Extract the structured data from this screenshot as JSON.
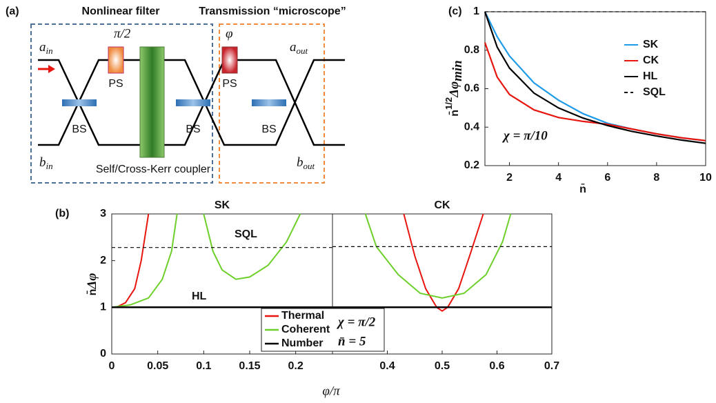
{
  "diagram": {
    "label": "(a)",
    "left_box_title": "Nonlinear filter",
    "right_box_title": "Transmission “microscope”",
    "phase1": "π/2",
    "phase2": "φ",
    "ports": [
      {
        "symbol": "a",
        "sub": "in"
      },
      {
        "symbol": "a",
        "sub": "out"
      },
      {
        "symbol": "b",
        "sub": "in"
      },
      {
        "symbol": "b",
        "sub": "out"
      }
    ],
    "ps_labels": [
      "PS",
      "PS"
    ],
    "bs_labels": [
      "BS",
      "BS",
      "BS"
    ],
    "coupler": "Self/Cross-Kerr coupler"
  },
  "chart_data": [
    {
      "type": "line",
      "panel_label": "(c)",
      "ylabel": {
        "base": "n̄",
        "sup": "1/2",
        "main": "Δφ",
        "sub": "min"
      },
      "xlabel": "n̄",
      "annotation": "χ = π/10",
      "xlim": [
        1,
        10
      ],
      "xticks": [
        2,
        4,
        6,
        8,
        10
      ],
      "ylim": [
        0.2,
        1
      ],
      "yticks": [
        0.2,
        0.4,
        0.6,
        0.8,
        1
      ],
      "x": [
        1,
        1.5,
        2,
        3,
        4,
        5,
        6,
        7,
        8,
        9,
        10
      ],
      "series": [
        {
          "name": "SK",
          "color": "#1e9be8",
          "values": [
            1,
            0.87,
            0.77,
            0.63,
            0.54,
            0.47,
            0.42,
            0.39,
            0.365,
            0.345,
            0.33
          ]
        },
        {
          "name": "CK",
          "color": "#e8140e",
          "values": [
            0.84,
            0.66,
            0.57,
            0.49,
            0.45,
            0.43,
            0.415,
            0.39,
            0.365,
            0.345,
            0.33
          ]
        },
        {
          "name": "HL",
          "color": "#000000",
          "values": [
            1,
            0.816,
            0.707,
            0.577,
            0.5,
            0.447,
            0.408,
            0.378,
            0.354,
            0.333,
            0.316
          ]
        },
        {
          "name": "SQL",
          "color": "#000000",
          "dash": true,
          "values": [
            1,
            1,
            1,
            1,
            1,
            1,
            1,
            1,
            1,
            1,
            1
          ]
        }
      ]
    },
    {
      "type": "line",
      "panel_label": "(b)",
      "title": "SK",
      "ylabel": {
        "base": "n̄",
        "main": "Δφ"
      },
      "xlabel": "φ/π",
      "annotations": [
        "SQL",
        "HL",
        "χ = π/2",
        "n̄ = 5"
      ],
      "xlim": [
        0,
        0.24
      ],
      "xticks": [
        0,
        0.05,
        0.1,
        0.15,
        0.2
      ],
      "ylim": [
        0,
        3
      ],
      "yticks": [
        0,
        1,
        2,
        3
      ],
      "series": [
        {
          "name": "Thermal",
          "color": "#e8140e",
          "x": [
            0.005,
            0.015,
            0.025,
            0.032,
            0.04
          ],
          "values": [
            1,
            1.1,
            1.4,
            2,
            3
          ]
        },
        {
          "name": "Coherent",
          "color": "#6dcf2a",
          "x": [
            0,
            0.02,
            0.04,
            0.055,
            0.065,
            0.071,
            null,
            0.1,
            0.11,
            0.12,
            0.135,
            0.15,
            0.17,
            0.19,
            0.205
          ],
          "values": [
            1,
            1.05,
            1.2,
            1.6,
            2.2,
            3,
            null,
            3,
            2.2,
            1.8,
            1.6,
            1.65,
            1.9,
            2.4,
            3
          ]
        },
        {
          "name": "Number",
          "color": "#000000",
          "x": [
            0,
            0.24
          ],
          "values": [
            1,
            1
          ]
        },
        {
          "color": "#000000",
          "dash": true,
          "x": [
            0,
            0.24
          ],
          "values": [
            2.28,
            2.28
          ]
        }
      ]
    },
    {
      "type": "line",
      "title": "CK",
      "xlim": [
        0.3,
        0.7
      ],
      "xticks": [
        0.4,
        0.5,
        0.6,
        0.7
      ],
      "ylim": [
        0,
        3
      ],
      "series": [
        {
          "color": "#e8140e",
          "x": [
            0.43,
            0.45,
            0.47,
            0.49,
            0.5,
            0.51,
            0.53,
            0.55,
            0.575
          ],
          "values": [
            3,
            2.1,
            1.4,
            1,
            0.92,
            1,
            1.4,
            2.1,
            3
          ]
        },
        {
          "color": "#6dcf2a",
          "x": [
            0.36,
            0.38,
            0.42,
            0.46,
            0.5,
            0.54,
            0.58,
            0.61,
            0.625
          ],
          "values": [
            3,
            2.3,
            1.7,
            1.3,
            1.2,
            1.3,
            1.7,
            2.4,
            3
          ]
        },
        {
          "color": "#000000",
          "x": [
            0.3,
            0.7
          ],
          "values": [
            1,
            1
          ]
        },
        {
          "color": "#000000",
          "dash": true,
          "x": [
            0.3,
            0.7
          ],
          "values": [
            2.3,
            2.3
          ]
        }
      ]
    }
  ]
}
